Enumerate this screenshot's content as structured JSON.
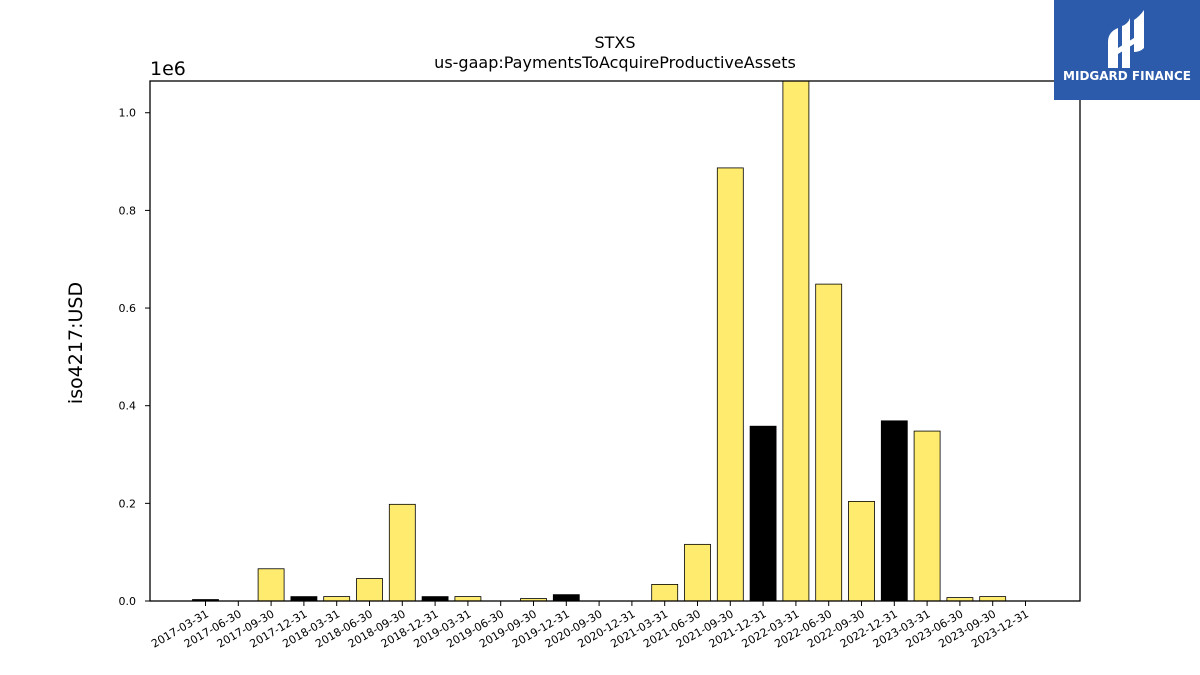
{
  "logo": {
    "text": "MIDGARD FINANCE",
    "background": "#2d5bab"
  },
  "chart_data": {
    "type": "bar",
    "title": "STXS",
    "subtitle": "us-gaap:PaymentsToAcquireProductiveAssets",
    "ylabel": "iso4217:USD",
    "y_offset_label": "1e6",
    "ylim": [
      0,
      1.065
    ],
    "yticks": [
      0.0,
      0.2,
      0.4,
      0.6,
      0.8,
      1.0
    ],
    "ytick_labels": [
      "0.0",
      "0.2",
      "0.4",
      "0.6",
      "0.8",
      "1.0"
    ],
    "grid": false,
    "colors": {
      "default": "#ffec6e",
      "highlight": "#000000"
    },
    "categories": [
      "2017-03-31",
      "2017-06-30",
      "2017-09-30",
      "2017-12-31",
      "2018-03-31",
      "2018-06-30",
      "2018-09-30",
      "2018-12-31",
      "2019-03-31",
      "2019-06-30",
      "2019-09-30",
      "2019-12-31",
      "2020-09-30",
      "2020-12-31",
      "2021-03-31",
      "2021-06-30",
      "2021-09-30",
      "2021-12-31",
      "2022-03-31",
      "2022-06-30",
      "2022-09-30",
      "2022-12-31",
      "2023-03-31",
      "2023-06-30",
      "2023-09-30",
      "2023-12-31"
    ],
    "values": [
      0.003,
      0.0,
      0.066,
      0.009,
      0.009,
      0.046,
      0.198,
      0.009,
      0.009,
      0.0,
      0.005,
      0.013,
      0.0,
      0.0,
      0.034,
      0.116,
      0.887,
      0.358,
      1.07,
      0.649,
      0.204,
      0.369,
      0.348,
      0.007,
      0.009,
      0.0
    ],
    "highlight": [
      true,
      false,
      false,
      true,
      false,
      false,
      false,
      true,
      false,
      false,
      false,
      true,
      false,
      false,
      false,
      false,
      false,
      true,
      false,
      false,
      false,
      true,
      false,
      false,
      false,
      false
    ]
  }
}
